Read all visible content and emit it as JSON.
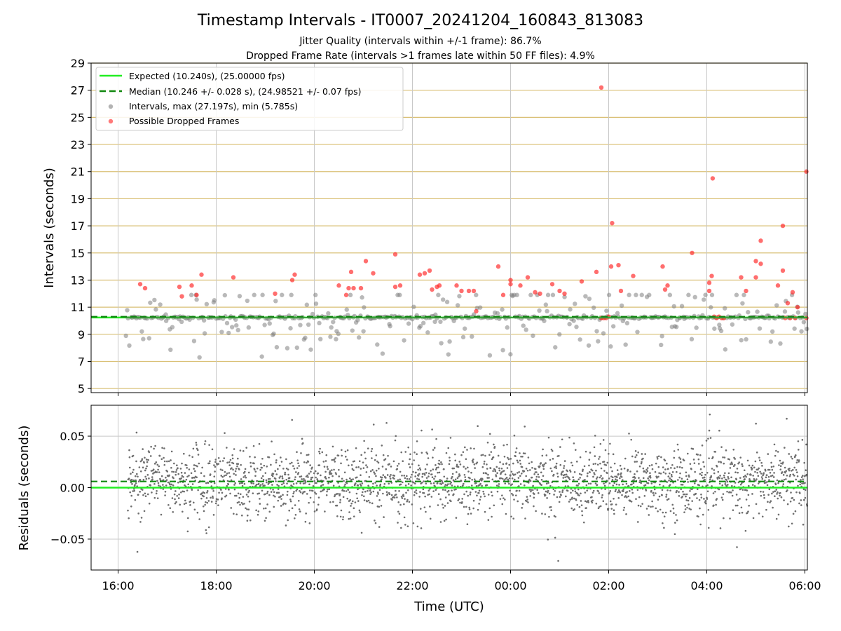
{
  "chart_data": {
    "title": "Timestamp Intervals - IT0007_20241204_160843_813083",
    "subtitle_lines": [
      "Jitter Quality (intervals within +/-1 frame): 86.7%",
      "Dropped Frame Rate (intervals >1 frames late within 50 FF files): 4.9%"
    ],
    "xlabel": "Time (UTC)",
    "x_ticks": [
      "16:00",
      "18:00",
      "20:00",
      "22:00",
      "00:00",
      "02:00",
      "04:00",
      "06:00"
    ],
    "x_tick_hours": [
      16,
      18,
      20,
      22,
      24,
      26,
      28,
      30
    ],
    "xlim_hours": [
      15.45,
      30.05
    ],
    "panels": [
      {
        "type": "scatter",
        "ylabel": "Intervals (seconds)",
        "ylim": [
          4.7,
          29
        ],
        "y_ticks": [
          5,
          7,
          9,
          11,
          13,
          15,
          17,
          19,
          21,
          23,
          25,
          27,
          29
        ],
        "frame_lines_every": 1,
        "grid": true,
        "legend_position": "top-left",
        "expected": 10.24,
        "median": 10.246,
        "series": [
          {
            "name": "Expected (10.240s), (25.00000 fps)",
            "kind": "line",
            "color": "#22ee22",
            "style": "solid"
          },
          {
            "name": "Median (10.246 +/- 0.028 s), (24.98521 +/- 0.07 fps)",
            "kind": "line",
            "color": "#118811",
            "style": "dashed"
          },
          {
            "name": "Intervals, max (27.197s), min (5.785s)",
            "kind": "points",
            "color": "#808080"
          },
          {
            "name": "Possible Dropped Frames",
            "kind": "points",
            "color": "#ff2020"
          }
        ],
        "dropped_points": [
          [
            16.45,
            12.7
          ],
          [
            16.55,
            12.4
          ],
          [
            17.25,
            12.5
          ],
          [
            17.3,
            11.8
          ],
          [
            17.5,
            12.6
          ],
          [
            17.6,
            11.9
          ],
          [
            17.7,
            13.4
          ],
          [
            18.35,
            13.2
          ],
          [
            19.2,
            12.0
          ],
          [
            19.55,
            13.0
          ],
          [
            19.6,
            13.4
          ],
          [
            20.5,
            12.6
          ],
          [
            20.65,
            11.9
          ],
          [
            20.7,
            12.4
          ],
          [
            20.75,
            13.6
          ],
          [
            20.8,
            12.4
          ],
          [
            20.95,
            12.4
          ],
          [
            21.05,
            14.4
          ],
          [
            21.2,
            13.5
          ],
          [
            21.65,
            12.5
          ],
          [
            21.65,
            14.9
          ],
          [
            21.75,
            12.6
          ],
          [
            22.15,
            13.4
          ],
          [
            22.25,
            13.5
          ],
          [
            22.35,
            13.7
          ],
          [
            22.4,
            12.3
          ],
          [
            22.5,
            12.5
          ],
          [
            22.55,
            12.6
          ],
          [
            22.9,
            12.6
          ],
          [
            23.0,
            12.2
          ],
          [
            23.15,
            12.2
          ],
          [
            23.25,
            12.2
          ],
          [
            23.3,
            10.7
          ],
          [
            23.75,
            14.0
          ],
          [
            23.85,
            11.9
          ],
          [
            24.0,
            12.7
          ],
          [
            24.0,
            13.0
          ],
          [
            24.2,
            12.6
          ],
          [
            24.35,
            13.2
          ],
          [
            24.5,
            12.1
          ],
          [
            24.6,
            12.0
          ],
          [
            24.85,
            12.7
          ],
          [
            25.0,
            12.2
          ],
          [
            25.1,
            12.0
          ],
          [
            25.45,
            12.9
          ],
          [
            25.75,
            13.6
          ],
          [
            25.85,
            27.2
          ],
          [
            25.85,
            10.2
          ],
          [
            25.9,
            10.2
          ],
          [
            25.95,
            10.2
          ],
          [
            26.0,
            10.3
          ],
          [
            26.05,
            14.0
          ],
          [
            26.07,
            17.2
          ],
          [
            26.2,
            14.1
          ],
          [
            26.25,
            12.2
          ],
          [
            26.5,
            13.3
          ],
          [
            27.1,
            14.0
          ],
          [
            27.15,
            12.3
          ],
          [
            27.2,
            12.6
          ],
          [
            27.7,
            15.0
          ],
          [
            28.05,
            12.2
          ],
          [
            28.05,
            12.8
          ],
          [
            28.1,
            13.3
          ],
          [
            28.12,
            20.5
          ],
          [
            28.15,
            10.3
          ],
          [
            28.2,
            10.2
          ],
          [
            28.25,
            10.3
          ],
          [
            28.3,
            10.2
          ],
          [
            28.35,
            10.2
          ],
          [
            28.7,
            13.2
          ],
          [
            28.8,
            12.2
          ],
          [
            29.0,
            13.2
          ],
          [
            29.0,
            14.4
          ],
          [
            29.1,
            14.2
          ],
          [
            29.1,
            15.9
          ],
          [
            29.45,
            12.6
          ],
          [
            29.55,
            13.7
          ],
          [
            29.55,
            17.0
          ],
          [
            29.6,
            10.2
          ],
          [
            29.65,
            11.3
          ],
          [
            29.7,
            10.2
          ],
          [
            29.75,
            12.1
          ],
          [
            29.8,
            10.2
          ],
          [
            29.85,
            11.0
          ],
          [
            30.03,
            21.0
          ],
          [
            30.03,
            10.2
          ]
        ]
      },
      {
        "type": "scatter",
        "ylabel": "Residuals (seconds)",
        "ylim": [
          -0.08,
          0.08
        ],
        "y_ticks": [
          0.05,
          0.0,
          -0.05
        ],
        "y_tick_labels": [
          "0.05",
          "0.00",
          "−0.05"
        ],
        "grid": true,
        "expected": 0.0,
        "median": 0.006
      }
    ]
  }
}
